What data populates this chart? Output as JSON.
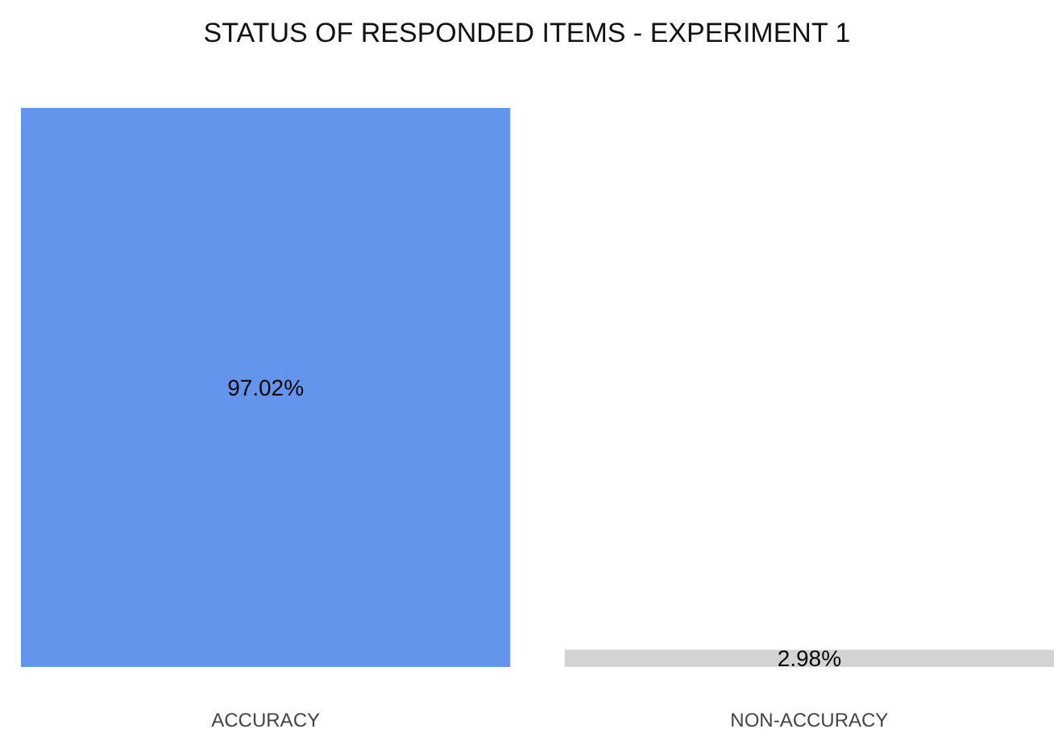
{
  "chart_data": {
    "type": "bar",
    "title": "STATUS OF RESPONDED ITEMS - EXPERIMENT 1",
    "categories": [
      "ACCURACY",
      "NON-ACCURACY"
    ],
    "values": [
      97.02,
      2.98
    ],
    "colors": [
      "#6495ed",
      "#d3d3d3"
    ],
    "value_labels": [
      "97.02%",
      "2.98%"
    ]
  }
}
